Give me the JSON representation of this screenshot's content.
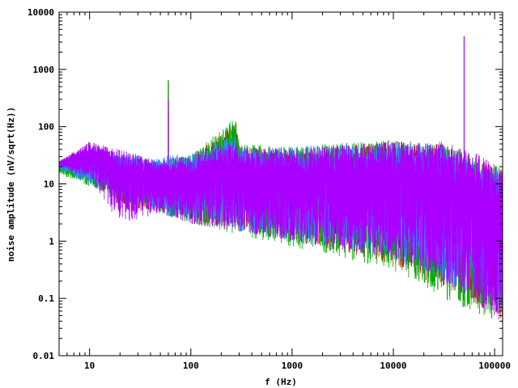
{
  "chart_data": {
    "type": "line",
    "xlabel": "f (Hz)",
    "ylabel": "noise amplitude (nV/sqrt(Hz))",
    "xscale": "log",
    "yscale": "log",
    "xlim": [
      5,
      120000
    ],
    "ylim": [
      0.01,
      10000
    ],
    "x_ticks": [
      {
        "value": 10,
        "label": "10"
      },
      {
        "value": 100,
        "label": "100"
      },
      {
        "value": 1000,
        "label": "1000"
      },
      {
        "value": 10000,
        "label": "10000"
      },
      {
        "value": 100000,
        "label": "100000"
      }
    ],
    "y_ticks": [
      {
        "value": 0.01,
        "label": "0.01"
      },
      {
        "value": 0.1,
        "label": "0.1"
      },
      {
        "value": 1,
        "label": "1"
      },
      {
        "value": 10,
        "label": "10"
      },
      {
        "value": 100,
        "label": "100"
      },
      {
        "value": 1000,
        "label": "1000"
      },
      {
        "value": 10000,
        "label": "10000"
      }
    ],
    "grid": false,
    "legend": "none",
    "series": [
      {
        "color": "#cc0000",
        "upper_envelope": [
          [
            5,
            25
          ],
          [
            10,
            38
          ],
          [
            20,
            25
          ],
          [
            50,
            22
          ],
          [
            60,
            600
          ],
          [
            70,
            30
          ],
          [
            100,
            30
          ],
          [
            280,
            120
          ],
          [
            300,
            45
          ],
          [
            1000,
            40
          ],
          [
            10000,
            55
          ],
          [
            30000,
            50
          ],
          [
            100000,
            20
          ],
          [
            120000,
            18
          ]
        ],
        "lower_envelope": [
          [
            5,
            20
          ],
          [
            10,
            15
          ],
          [
            20,
            4
          ],
          [
            50,
            3
          ],
          [
            100,
            2
          ],
          [
            1000,
            1
          ],
          [
            10000,
            0.4
          ],
          [
            30000,
            0.15
          ],
          [
            100000,
            0.05
          ],
          [
            120000,
            0.04
          ]
        ]
      },
      {
        "color": "#00aa00",
        "upper_envelope": [
          [
            5,
            22
          ],
          [
            10,
            30
          ],
          [
            20,
            30
          ],
          [
            50,
            25
          ],
          [
            60,
            650
          ],
          [
            70,
            30
          ],
          [
            100,
            32
          ],
          [
            280,
            150
          ],
          [
            300,
            50
          ],
          [
            1000,
            45
          ],
          [
            10000,
            60
          ],
          [
            30000,
            55
          ],
          [
            100000,
            22
          ],
          [
            120000,
            20
          ]
        ],
        "lower_envelope": [
          [
            5,
            15
          ],
          [
            10,
            9
          ],
          [
            20,
            5
          ],
          [
            50,
            3
          ],
          [
            100,
            2
          ],
          [
            1000,
            0.8
          ],
          [
            10000,
            0.3
          ],
          [
            30000,
            0.1
          ],
          [
            100000,
            0.04
          ],
          [
            120000,
            0.03
          ]
        ]
      },
      {
        "color": "#3388ff",
        "upper_envelope": [
          [
            5,
            25
          ],
          [
            10,
            40
          ],
          [
            20,
            35
          ],
          [
            50,
            28
          ],
          [
            60,
            200
          ],
          [
            70,
            35
          ],
          [
            100,
            35
          ],
          [
            280,
            80
          ],
          [
            300,
            45
          ],
          [
            1000,
            45
          ],
          [
            10000,
            55
          ],
          [
            30000,
            50
          ],
          [
            100000,
            20
          ],
          [
            120000,
            18
          ]
        ],
        "lower_envelope": [
          [
            5,
            18
          ],
          [
            10,
            10
          ],
          [
            20,
            6
          ],
          [
            50,
            3
          ],
          [
            100,
            2
          ],
          [
            1000,
            1
          ],
          [
            10000,
            0.5
          ],
          [
            30000,
            0.2
          ],
          [
            100000,
            0.07
          ],
          [
            120000,
            0.05
          ]
        ]
      },
      {
        "color": "#aa00ff",
        "upper_envelope": [
          [
            5,
            25
          ],
          [
            10,
            55
          ],
          [
            20,
            40
          ],
          [
            50,
            25
          ],
          [
            60,
            300
          ],
          [
            70,
            30
          ],
          [
            100,
            30
          ],
          [
            280,
            60
          ],
          [
            300,
            42
          ],
          [
            1000,
            42
          ],
          [
            10000,
            55
          ],
          [
            30000,
            50
          ],
          [
            50000,
            3800
          ],
          [
            52000,
            45
          ],
          [
            100000,
            22
          ],
          [
            120000,
            20
          ]
        ],
        "lower_envelope": [
          [
            5,
            20
          ],
          [
            10,
            12
          ],
          [
            20,
            2
          ],
          [
            50,
            3
          ],
          [
            100,
            2
          ],
          [
            1000,
            1
          ],
          [
            10000,
            0.5
          ],
          [
            30000,
            0.2
          ],
          [
            100000,
            0.05
          ],
          [
            120000,
            0.03
          ]
        ]
      }
    ]
  }
}
